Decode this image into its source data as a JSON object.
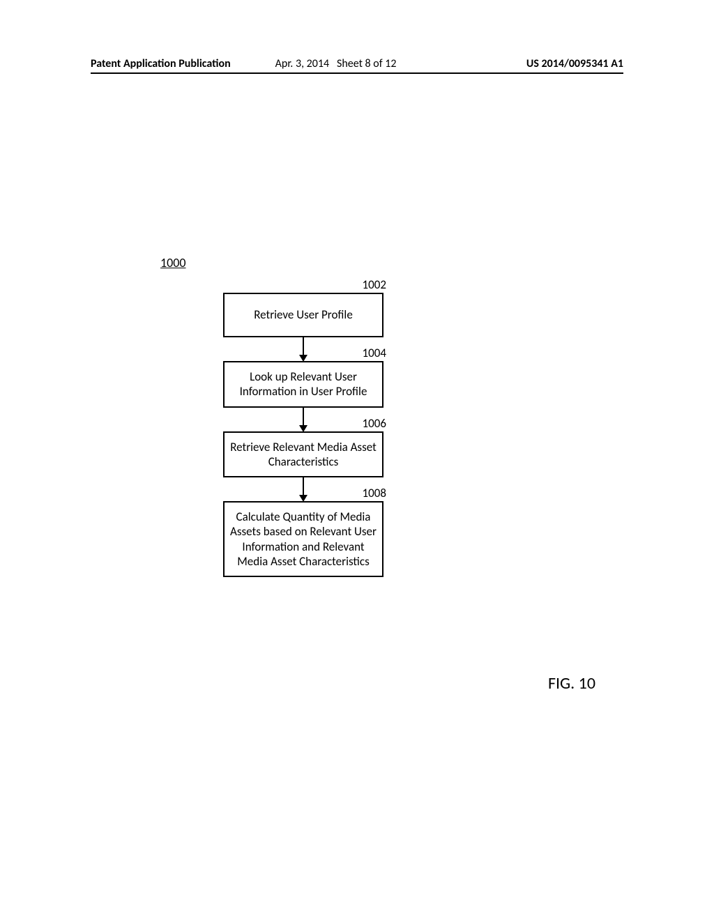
{
  "header": {
    "left": "Patent Application Publication",
    "date": "Apr. 3, 2014",
    "sheet": "Sheet 8 of 12",
    "pubnum": "US 2014/0095341 A1"
  },
  "diagram": {
    "figure_ref": "1000",
    "caption": "FIG. 10",
    "box_border_color": "#000000",
    "box_border_width": 2.5,
    "background_color": "#ffffff",
    "font_color": "#000000",
    "step_font_size": 17,
    "ref_font_size": 17,
    "caption_font_size": 24,
    "steps": [
      {
        "ref": "1002",
        "text": "Retrieve User Profile"
      },
      {
        "ref": "1004",
        "text": "Look up Relevant User Information in User Profile"
      },
      {
        "ref": "1006",
        "text": "Retrieve Relevant Media Asset Characteristics"
      },
      {
        "ref": "1008",
        "text": "Calculate Quantity of Media Assets based on Relevant User Information and Relevant Media Asset Characteristics"
      }
    ]
  }
}
